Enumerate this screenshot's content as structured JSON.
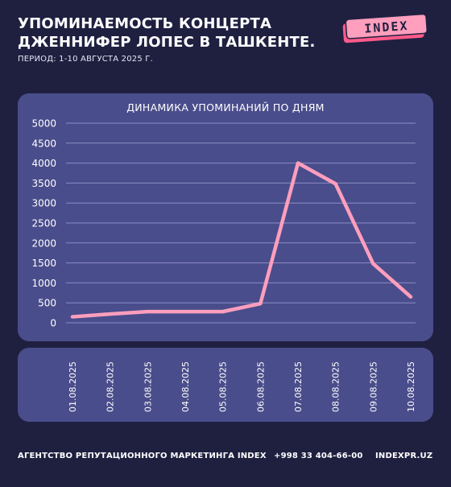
{
  "header": {
    "title_line1": "УПОМИНАЕМОСТЬ КОНЦЕРТА",
    "title_line2": "ДЖЕННИФЕР ЛОПЕС В ТАШКЕНТЕ.",
    "subtitle": "ПЕРИОД: 1-10 АВГУСТА 2025 Г.",
    "logo_text": "INDEX"
  },
  "colors": {
    "background": "#1f2040",
    "panel": "#4a4d8b",
    "line": "#ff9ebd",
    "logo_fill": "#ff9ebd",
    "logo_back": "#ff5a8a"
  },
  "chart_data": {
    "type": "line",
    "title": "ДИНАМИКА УПОМИНАНИЙ ПО ДНЯМ",
    "categories": [
      "01.08.2025",
      "02.08.2025",
      "03.08.2025",
      "04.08.2025",
      "05.08.2025",
      "06.08.2025",
      "07.08.2025",
      "08.08.2025",
      "09.08.2025",
      "10.08.2025"
    ],
    "series": [
      {
        "values": [
          150,
          220,
          280,
          280,
          280,
          480,
          4000,
          3480,
          1480,
          650
        ]
      }
    ],
    "ylim": [
      0,
      5000
    ],
    "yticks": [
      0,
      500,
      1000,
      1500,
      2000,
      2500,
      3000,
      3500,
      4000,
      4500,
      5000
    ],
    "grid": true,
    "legend": "none"
  },
  "footer": {
    "agency": "АГЕНТСТВО РЕПУТАЦИОННОГО МАРКЕТИНГА INDEX",
    "phone": "+998 33 404-66-00",
    "site": "INDEXPR.UZ"
  }
}
